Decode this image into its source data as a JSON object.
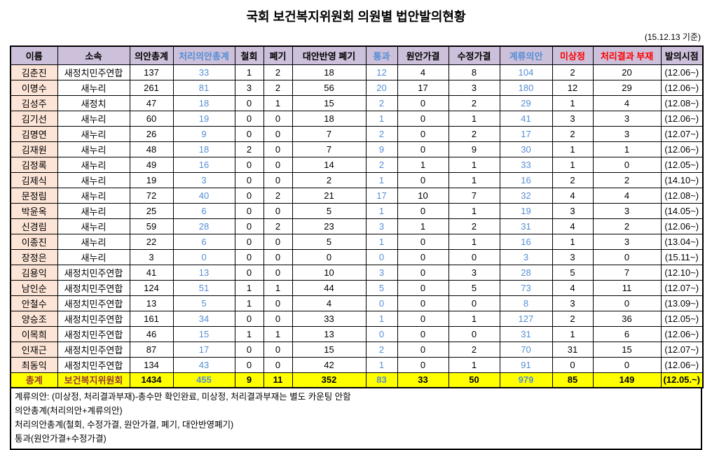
{
  "title": "국회 보건복지위원회 의원별 법안발의현황",
  "as_of": "(15.12.13 기준)",
  "colors": {
    "header_bg": "#CCC0DA",
    "name_col_bg": "#FCE4D6",
    "total_row_bg": "#FFFF00",
    "blue_text": "#558ED5",
    "red_text": "#FF0000",
    "total_label_text": "#963634"
  },
  "table": {
    "headers": [
      {
        "key": "name",
        "label": "이름",
        "color": "black"
      },
      {
        "key": "party",
        "label": "소속",
        "color": "black"
      },
      {
        "key": "bills-total",
        "label": "의안총계",
        "color": "black"
      },
      {
        "key": "processed-total",
        "label": "처리의안총계",
        "color": "blue"
      },
      {
        "key": "withdrawn",
        "label": "철회",
        "color": "black"
      },
      {
        "key": "discarded",
        "label": "폐기",
        "color": "black"
      },
      {
        "key": "alternative-discarded",
        "label": "대안반영 폐기",
        "color": "black"
      },
      {
        "key": "passed",
        "label": "통과",
        "color": "blue"
      },
      {
        "key": "original-passed",
        "label": "원안가결",
        "color": "black"
      },
      {
        "key": "amended-passed",
        "label": "수정가결",
        "color": "black"
      },
      {
        "key": "pending",
        "label": "계류의안",
        "color": "blue"
      },
      {
        "key": "not-presented",
        "label": "미상정",
        "color": "red"
      },
      {
        "key": "result-absent",
        "label": "처리결과 부재",
        "color": "red"
      },
      {
        "key": "start-date",
        "label": "발의시점",
        "color": "black"
      }
    ],
    "blue_value_columns": [
      3,
      7,
      10
    ],
    "rows": [
      [
        "김춘진",
        "새정치민주연합",
        137,
        33,
        1,
        2,
        18,
        12,
        4,
        8,
        104,
        2,
        20,
        "(12.06~)"
      ],
      [
        "이명수",
        "새누리",
        261,
        81,
        3,
        2,
        56,
        20,
        17,
        3,
        180,
        12,
        29,
        "(12.06~)"
      ],
      [
        "김성주",
        "새정치",
        47,
        18,
        0,
        1,
        15,
        2,
        0,
        2,
        29,
        1,
        4,
        "(12.08~)"
      ],
      [
        "김기선",
        "새누리",
        60,
        19,
        0,
        0,
        18,
        1,
        0,
        1,
        41,
        3,
        3,
        "(12.06~)"
      ],
      [
        "김명연",
        "새누리",
        26,
        9,
        0,
        0,
        7,
        2,
        0,
        2,
        17,
        2,
        3,
        "(12.07~)"
      ],
      [
        "김재원",
        "새누리",
        48,
        18,
        2,
        0,
        7,
        9,
        0,
        9,
        30,
        1,
        1,
        "(12.06~)"
      ],
      [
        "김정록",
        "새누리",
        49,
        16,
        0,
        0,
        14,
        2,
        1,
        1,
        33,
        1,
        0,
        "(12.05~)"
      ],
      [
        "김제식",
        "새누리",
        19,
        3,
        0,
        0,
        2,
        1,
        0,
        1,
        16,
        2,
        2,
        "(14.10~)"
      ],
      [
        "문정림",
        "새누리",
        72,
        40,
        0,
        2,
        21,
        17,
        10,
        7,
        32,
        4,
        4,
        "(12.08~)"
      ],
      [
        "박윤옥",
        "새누리",
        25,
        6,
        0,
        0,
        5,
        1,
        0,
        1,
        19,
        3,
        3,
        "(14.05~)"
      ],
      [
        "신경림",
        "새누리",
        59,
        28,
        0,
        2,
        23,
        3,
        1,
        2,
        31,
        4,
        2,
        "(12.06~)"
      ],
      [
        "이종진",
        "새누리",
        22,
        6,
        0,
        0,
        5,
        1,
        0,
        1,
        16,
        1,
        3,
        "(13.04~)"
      ],
      [
        "장정은",
        "새누리",
        3,
        0,
        0,
        0,
        0,
        0,
        0,
        0,
        3,
        3,
        0,
        "(15.11~)"
      ],
      [
        "김용익",
        "새정치민주연합",
        41,
        13,
        0,
        0,
        10,
        3,
        0,
        3,
        28,
        5,
        7,
        "(12.10~)"
      ],
      [
        "남인순",
        "새정치민주연합",
        124,
        51,
        1,
        1,
        44,
        5,
        0,
        5,
        73,
        4,
        11,
        "(12.07~)"
      ],
      [
        "안철수",
        "새정치민주연합",
        13,
        5,
        1,
        0,
        4,
        0,
        0,
        0,
        8,
        3,
        0,
        "(13.09~)"
      ],
      [
        "양승조",
        "새정치민주연합",
        161,
        34,
        0,
        0,
        33,
        1,
        0,
        1,
        127,
        2,
        36,
        "(12.05~)"
      ],
      [
        "이목희",
        "새정치민주연합",
        46,
        15,
        1,
        1,
        13,
        0,
        0,
        0,
        31,
        1,
        6,
        "(12.06~)"
      ],
      [
        "인재근",
        "새정치민주연합",
        87,
        17,
        0,
        0,
        15,
        2,
        0,
        2,
        70,
        31,
        15,
        "(12.07~)"
      ],
      [
        "최동익",
        "새정치민주연합",
        134,
        43,
        0,
        0,
        42,
        1,
        0,
        1,
        91,
        0,
        0,
        "(12.06~)"
      ]
    ],
    "total": [
      "총계",
      "보건복지위원회",
      1434,
      455,
      9,
      11,
      352,
      83,
      33,
      50,
      979,
      85,
      149,
      "(12.05.~)"
    ]
  },
  "footnotes": [
    "계류의안: (미상정, 처리결과부재)-총수만 확인완료, 미상정, 처리결과부재는 별도 카운팅 안함",
    "의안총계(처리의안+계류의안)",
    "처리의안총계(철회, 수정가결, 원안가결, 폐기, 대안반영폐기)",
    "통과(원안가결+수정가결)"
  ]
}
